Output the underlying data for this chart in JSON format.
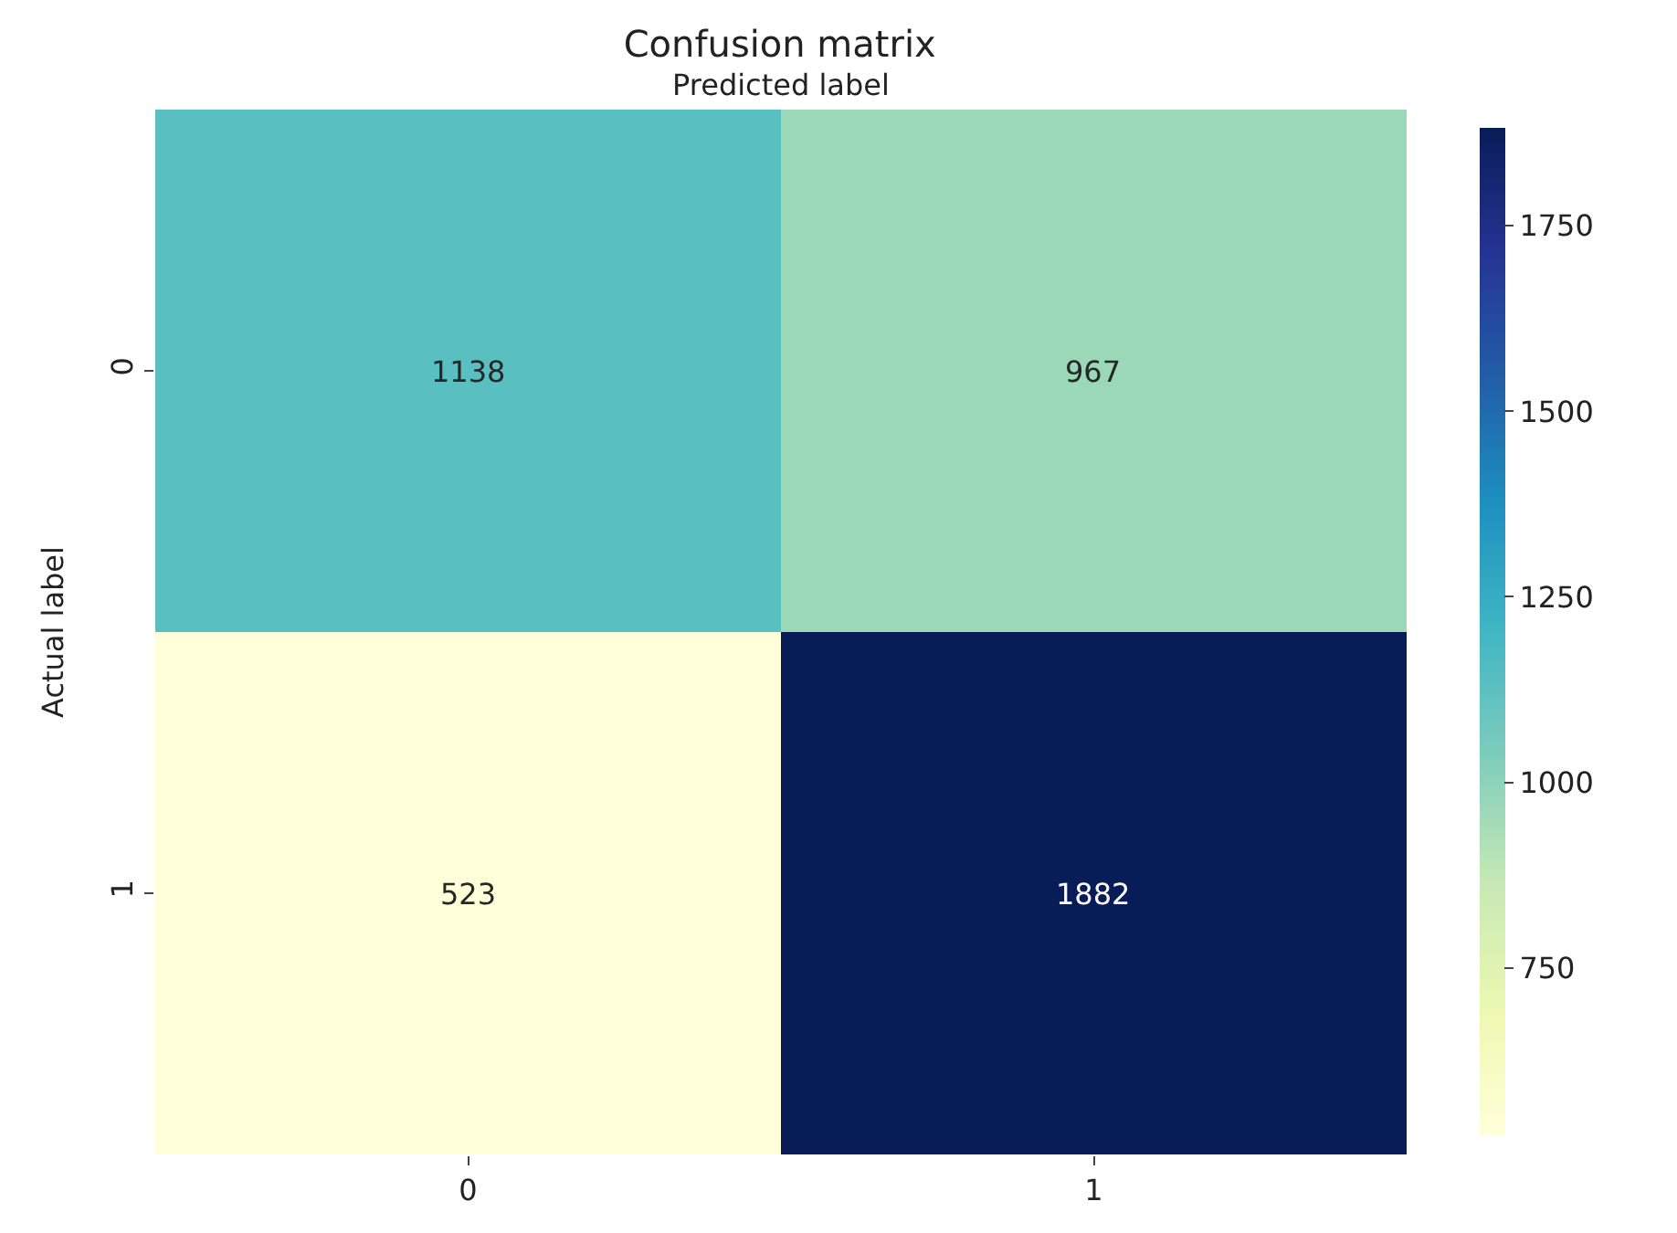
{
  "chart_data": {
    "type": "heatmap",
    "title": "Confusion matrix",
    "xlabel": "Predicted label",
    "ylabel": "Actual label",
    "categories": [
      "0",
      "1"
    ],
    "y_categories": [
      "0",
      "1"
    ],
    "cells": [
      [
        1138,
        967
      ],
      [
        523,
        1882
      ]
    ],
    "clim": [
      523,
      1882
    ],
    "cticks": [
      750,
      1000,
      1250,
      1500,
      1750
    ],
    "data_labels": true
  }
}
